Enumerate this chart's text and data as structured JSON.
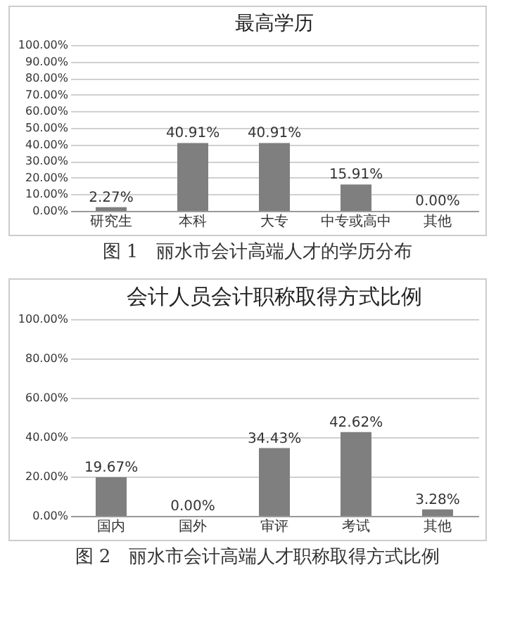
{
  "chart_data": [
    {
      "type": "bar",
      "title": "最高学历",
      "categories": [
        "研究生",
        "本科",
        "大专",
        "中专或高中",
        "其他"
      ],
      "values": [
        2.27,
        40.91,
        40.91,
        15.91,
        0.0
      ],
      "value_labels": [
        "2.27%",
        "40.91%",
        "40.91%",
        "15.91%",
        "0.00%"
      ],
      "color": "#7f7f7f",
      "ylim": [
        0,
        100
      ],
      "yticks": [
        {
          "value": 0,
          "label": "0.00%"
        },
        {
          "value": 10,
          "label": "10.00%"
        },
        {
          "value": 20,
          "label": "20.00%"
        },
        {
          "value": 30,
          "label": "30.00%"
        },
        {
          "value": 40,
          "label": "40.00%"
        },
        {
          "value": 50,
          "label": "50.00%"
        },
        {
          "value": 60,
          "label": "60.00%"
        },
        {
          "value": 70,
          "label": "70.00%"
        },
        {
          "value": 80,
          "label": "80.00%"
        },
        {
          "value": 90,
          "label": "90.00%"
        },
        {
          "value": 100,
          "label": "100.00%"
        }
      ],
      "grid": "y",
      "annotations": [
        "图 1　丽水市会计高端人才的学历分布"
      ]
    },
    {
      "type": "bar",
      "title": "会计人员会计职称取得方式比例",
      "categories": [
        "国内",
        "国外",
        "审评",
        "考试",
        "其他"
      ],
      "values": [
        19.67,
        0.0,
        34.43,
        42.62,
        3.28
      ],
      "value_labels": [
        "19.67%",
        "0.00%",
        "34.43%",
        "42.62%",
        "3.28%"
      ],
      "color": "#7f7f7f",
      "ylim": [
        0,
        100
      ],
      "yticks": [
        {
          "value": 0,
          "label": "0.00%"
        },
        {
          "value": 20,
          "label": "20.00%"
        },
        {
          "value": 40,
          "label": "40.00%"
        },
        {
          "value": 60,
          "label": "60.00%"
        },
        {
          "value": 80,
          "label": "80.00%"
        },
        {
          "value": 100,
          "label": "100.00%"
        }
      ],
      "grid": "y",
      "annotations": [
        "图 2　丽水市会计高端人才职称取得方式比例"
      ]
    }
  ]
}
